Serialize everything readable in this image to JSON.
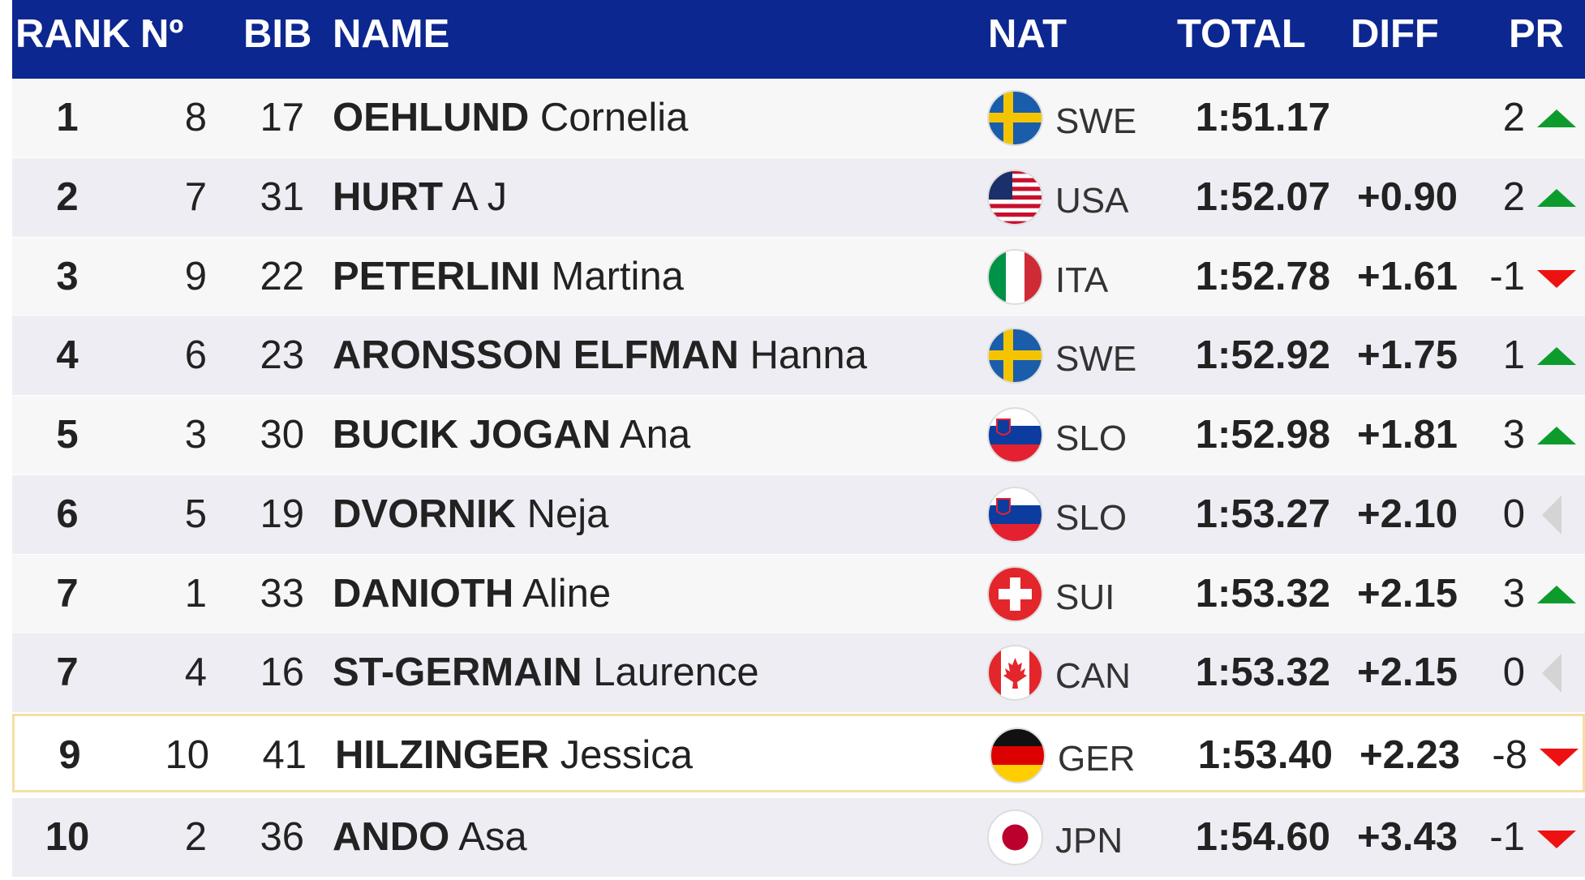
{
  "header": {
    "rank": "RANK",
    "no": "Nº",
    "bib": "BIB",
    "name": "NAME",
    "nat": "NAT",
    "total": "TOTAL",
    "diff": "DIFF",
    "pr": "PR"
  },
  "colors": {
    "header_bg": "#0c2790",
    "up": "#0d9c2c",
    "down": "#ee1111",
    "unchanged": "#d4d4d4",
    "highlight_border": "#f6dfa6"
  },
  "rows": [
    {
      "rank": "1",
      "no": "8",
      "bib": "17",
      "last": "OEHLUND",
      "first": "Cornelia",
      "nat": "SWE",
      "flag": "swe-flag",
      "total": "1:51.17",
      "diff": "",
      "pr": "2",
      "trend": "up"
    },
    {
      "rank": "2",
      "no": "7",
      "bib": "31",
      "last": "HURT",
      "first": "A J",
      "nat": "USA",
      "flag": "usa-flag",
      "total": "1:52.07",
      "diff": "+0.90",
      "pr": "2",
      "trend": "up"
    },
    {
      "rank": "3",
      "no": "9",
      "bib": "22",
      "last": "PETERLINI",
      "first": "Martina",
      "nat": "ITA",
      "flag": "ita-flag",
      "total": "1:52.78",
      "diff": "+1.61",
      "pr": "-1",
      "trend": "down"
    },
    {
      "rank": "4",
      "no": "6",
      "bib": "23",
      "last": "ARONSSON ELFMAN",
      "first": "Hanna",
      "nat": "SWE",
      "flag": "swe-flag",
      "total": "1:52.92",
      "diff": "+1.75",
      "pr": "1",
      "trend": "up"
    },
    {
      "rank": "5",
      "no": "3",
      "bib": "30",
      "last": "BUCIK JOGAN",
      "first": "Ana",
      "nat": "SLO",
      "flag": "slo-flag",
      "total": "1:52.98",
      "diff": "+1.81",
      "pr": "3",
      "trend": "up"
    },
    {
      "rank": "6",
      "no": "5",
      "bib": "19",
      "last": "DVORNIK",
      "first": "Neja",
      "nat": "SLO",
      "flag": "slo-flag",
      "total": "1:53.27",
      "diff": "+2.10",
      "pr": "0",
      "trend": "same"
    },
    {
      "rank": "7",
      "no": "1",
      "bib": "33",
      "last": "DANIOTH",
      "first": "Aline",
      "nat": "SUI",
      "flag": "sui-flag",
      "total": "1:53.32",
      "diff": "+2.15",
      "pr": "3",
      "trend": "up"
    },
    {
      "rank": "7",
      "no": "4",
      "bib": "16",
      "last": "ST-GERMAIN",
      "first": "Laurence",
      "nat": "CAN",
      "flag": "can-flag",
      "total": "1:53.32",
      "diff": "+2.15",
      "pr": "0",
      "trend": "same"
    },
    {
      "rank": "9",
      "no": "10",
      "bib": "41",
      "last": "HILZINGER",
      "first": "Jessica",
      "nat": "GER",
      "flag": "ger-flag",
      "total": "1:53.40",
      "diff": "+2.23",
      "pr": "-8",
      "trend": "down",
      "highlighted": true
    },
    {
      "rank": "10",
      "no": "2",
      "bib": "36",
      "last": "ANDO",
      "first": "Asa",
      "nat": "JPN",
      "flag": "jpn-flag",
      "total": "1:54.60",
      "diff": "+3.43",
      "pr": "-1",
      "trend": "down"
    }
  ]
}
